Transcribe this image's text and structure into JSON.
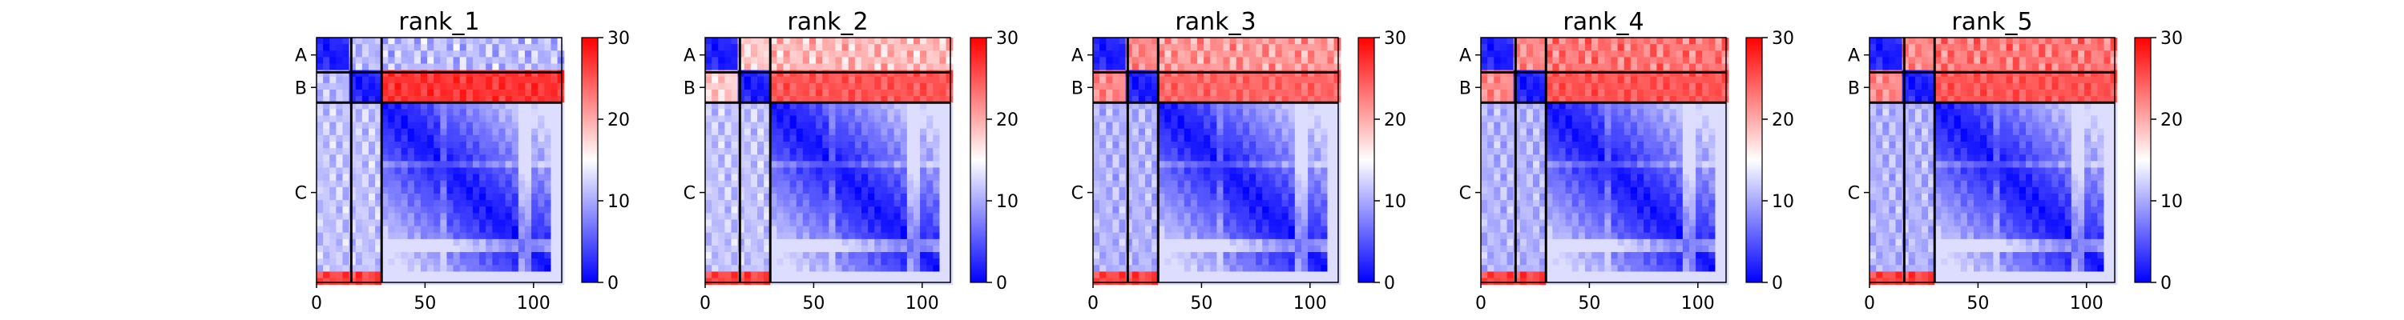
{
  "chart_data": {
    "type": "heatmap",
    "description_colormap": "bwr",
    "colorbar": {
      "range": [
        0,
        30
      ],
      "ticks": [
        "0",
        "10",
        "20",
        "30"
      ],
      "low_color": "#0000ff",
      "mid_color": "#ffffff",
      "high_color": "#ff0000"
    },
    "x_range": [
      0,
      113
    ],
    "x_ticks": [
      0,
      50,
      100
    ],
    "chains": [
      {
        "label": "A",
        "start": 0,
        "end": 16
      },
      {
        "label": "B",
        "start": 16,
        "end": 30
      },
      {
        "label": "C",
        "start": 30,
        "end": 113
      }
    ],
    "panels": [
      {
        "title": "rank_1",
        "inter_AB": 11,
        "inter_A_C": 11,
        "inter_B_C": 27,
        "inter_AB_C_col": 19
      },
      {
        "title": "rank_2",
        "inter_AB": 18,
        "inter_A_C": 19,
        "inter_B_C": 25,
        "inter_AB_C_col": 19
      },
      {
        "title": "rank_3",
        "inter_AB": 22,
        "inter_A_C": 21,
        "inter_B_C": 24,
        "inter_AB_C_col": 17
      },
      {
        "title": "rank_4",
        "inter_AB": 22,
        "inter_A_C": 23,
        "inter_B_C": 25,
        "inter_AB_C_col": 17
      },
      {
        "title": "rank_5",
        "inter_AB": 22,
        "inter_A_C": 23,
        "inter_B_C": 25,
        "inter_AB_C_col": 17
      }
    ]
  }
}
